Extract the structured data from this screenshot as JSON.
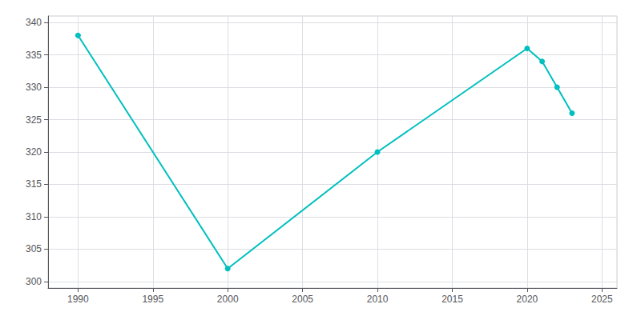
{
  "chart_data": {
    "type": "line",
    "x": [
      1990,
      2000,
      2010,
      2020,
      2021,
      2022,
      2023
    ],
    "values": [
      338,
      302,
      320,
      336,
      334,
      330,
      326
    ],
    "color": "#00BFBF",
    "marker": "circle",
    "xlim": [
      1988,
      2026
    ],
    "xticks": [
      1990,
      1995,
      2000,
      2005,
      2010,
      2015,
      2020,
      2025
    ],
    "ylim": [
      299,
      341
    ],
    "yticks": [
      300,
      305,
      310,
      315,
      320,
      325,
      330,
      335,
      340
    ],
    "grid": true
  }
}
